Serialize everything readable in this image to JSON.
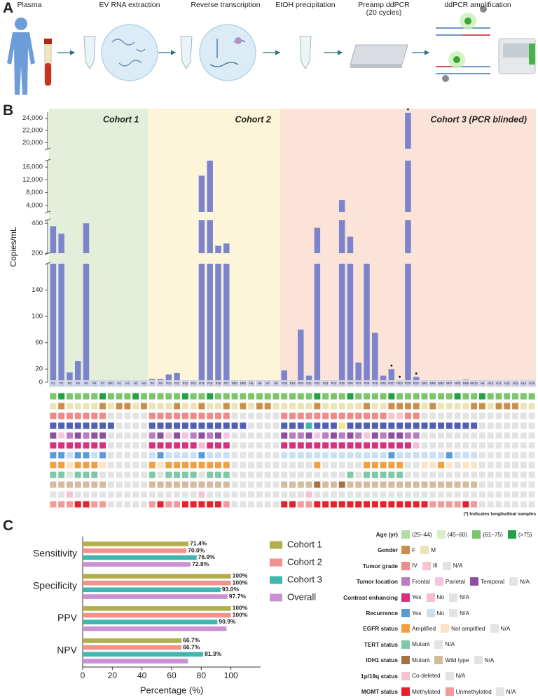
{
  "panels": [
    "A",
    "B",
    "C"
  ],
  "workflow": {
    "steps": [
      "Plasma",
      "EV RNA extraction",
      "Reverse transcription",
      "EtOH precipitation",
      "Preamp ddPCR (20 cycles)",
      "ddPCR amplification"
    ]
  },
  "chart_data": [
    {
      "type": "bar",
      "ylabel": "Copies/mL",
      "color": "#7c84cc",
      "y_segments": [
        {
          "ylim": [
            0,
            180
          ],
          "yticks": [
            0,
            20,
            60,
            100,
            140
          ]
        },
        {
          "ylim": [
            200,
            420
          ],
          "yticks": [
            200,
            400
          ]
        },
        {
          "ylim": [
            2000,
            18000
          ],
          "yticks": [
            {
              "value": 4000,
              "label": "4,000"
            },
            {
              "value": 8000,
              "label": "8,000"
            },
            {
              "value": 12000,
              "label": "12,000"
            },
            {
              "value": 16000,
              "label": "16,000"
            }
          ]
        },
        {
          "ylim": [
            19000,
            25000
          ],
          "yticks": [
            {
              "value": 20000,
              "label": "20,000"
            },
            {
              "value": 22000,
              "label": "22,000"
            },
            {
              "value": 24000,
              "label": "24,000"
            }
          ]
        }
      ],
      "groups": [
        {
          "name": "Cohort 1",
          "color": "#e4efd9",
          "categories": [
            "P1",
            "P2",
            "P3",
            "P4",
            "P5",
            "P6",
            "P7",
            "NR1",
            "H1",
            "H2",
            "H3",
            "H4"
          ],
          "values": [
            380,
            330,
            15,
            32,
            400,
            0,
            0,
            0,
            0,
            0,
            0,
            0
          ]
        },
        {
          "name": "Cohort 2",
          "color": "#fcf5d9",
          "categories": [
            "P8",
            "P9",
            "P10",
            "P11",
            "P12",
            "P13",
            "P14",
            "P15",
            "P16",
            "P17",
            "NR2",
            "NR3",
            "H5",
            "H6",
            "H7",
            "H8"
          ],
          "values": [
            5,
            5,
            12,
            14,
            0,
            0,
            13300,
            18000,
            250,
            265,
            0,
            0,
            0,
            0,
            0,
            0
          ]
        },
        {
          "name": "Cohort 3 (PCR blinded)",
          "color": "#fbe3d8",
          "categories": [
            "P18",
            "P19",
            "P20",
            "P21",
            "P22",
            "P23",
            "P24",
            "P25",
            "P26",
            "P27",
            "P28",
            "P29",
            "P30",
            "P31*",
            "P32*",
            "P33*",
            "P34*",
            "NR4",
            "NR5",
            "NR6",
            "NR7",
            "NR8",
            "NR9",
            "NR10",
            "H9",
            "H10",
            "H11",
            "H12",
            "H13",
            "H14",
            "H15"
          ],
          "values": [
            18,
            0,
            80,
            10,
            370,
            0,
            0,
            5700,
            310,
            30,
            180,
            75,
            10,
            20,
            3,
            24900,
            8,
            0,
            0,
            0,
            0,
            0,
            4,
            0,
            0,
            0,
            0,
            0,
            0,
            0,
            0
          ]
        }
      ],
      "note": "(*) Indicates longitudinal samples",
      "heatmap": [
        {
          "name": "Age (yr)",
          "categories": [
            "(25–44)",
            "(45–60)",
            "(61–75)",
            "(>75)"
          ],
          "colors": [
            "#b5dca5",
            "#d9edc9",
            "#7dc56b",
            "#24a148"
          ],
          "values": [
            2,
            3,
            2,
            2,
            2,
            2,
            3,
            2,
            2,
            2,
            3,
            2,
            2,
            2,
            2,
            2,
            3,
            2,
            2,
            3,
            2,
            2,
            2,
            2,
            2,
            2,
            2,
            2,
            2,
            2,
            2,
            2,
            3,
            2,
            2,
            2,
            3,
            2,
            2,
            2,
            2,
            3,
            2,
            2,
            2,
            2,
            2,
            2,
            2,
            3,
            2,
            2,
            3,
            2,
            2,
            2,
            2,
            2,
            2
          ]
        },
        {
          "name": "Gender",
          "categories": [
            "F",
            "M"
          ],
          "colors": [
            "#c98f4a",
            "#ece3b8"
          ],
          "values": [
            1,
            0,
            1,
            1,
            1,
            1,
            0,
            1,
            0,
            0,
            1,
            0,
            1,
            1,
            1,
            0,
            1,
            1,
            0,
            1,
            1,
            0,
            1,
            0,
            1,
            0,
            0,
            1,
            1,
            1,
            1,
            1,
            0,
            1,
            1,
            1,
            1,
            1,
            0,
            1,
            1,
            0,
            0,
            0,
            0,
            1,
            0,
            1,
            1,
            1,
            1,
            0,
            0,
            1,
            0,
            0,
            0,
            1,
            1
          ]
        },
        {
          "name": "Tumor grade",
          "categories": [
            "IV",
            "III",
            "N/A"
          ],
          "colors": [
            "#f08a8a",
            "#f7c5cc",
            "#e3e3e3"
          ],
          "values": [
            0,
            0,
            0,
            0,
            0,
            0,
            0,
            2,
            2,
            2,
            2,
            2,
            0,
            0,
            0,
            0,
            0,
            0,
            0,
            0,
            0,
            0,
            2,
            2,
            2,
            2,
            2,
            2,
            0,
            0,
            0,
            0,
            0,
            0,
            0,
            0,
            0,
            0,
            0,
            0,
            0,
            1,
            1,
            0,
            0,
            2,
            2,
            2,
            2,
            2,
            2,
            2,
            2,
            2,
            2,
            2,
            2,
            2,
            2
          ]
        },
        {
          "colors": [
            "#4f5fb3",
            "#3bb5b0",
            "#efe58a",
            "#e3e3e3"
          ],
          "values": [
            0,
            0,
            0,
            0,
            0,
            0,
            0,
            0,
            3,
            3,
            3,
            3,
            0,
            0,
            0,
            0,
            0,
            0,
            0,
            0,
            0,
            0,
            0,
            0,
            3,
            3,
            3,
            3,
            0,
            0,
            0,
            1,
            0,
            0,
            0,
            2,
            0,
            0,
            0,
            0,
            0,
            0,
            0,
            0,
            0,
            0,
            0,
            0,
            0,
            0,
            0,
            0,
            3,
            3,
            3,
            3,
            3,
            3,
            3
          ]
        },
        {
          "name": "Tumor location",
          "categories": [
            "Frontal",
            "Parietal",
            "Temporal",
            "N/A"
          ],
          "colors": [
            "#b87cc0",
            "#f4c6dd",
            "#8e4fa0",
            "#e3e3e3"
          ],
          "values": [
            2,
            1,
            0,
            2,
            0,
            2,
            2,
            3,
            3,
            3,
            3,
            3,
            0,
            2,
            1,
            2,
            1,
            0,
            2,
            0,
            2,
            1,
            3,
            3,
            3,
            3,
            3,
            3,
            2,
            0,
            0,
            2,
            1,
            0,
            2,
            0,
            2,
            0,
            1,
            2,
            0,
            2,
            2,
            0,
            0,
            3,
            3,
            3,
            3,
            3,
            3,
            3,
            3,
            3,
            3,
            3,
            3,
            3,
            3
          ]
        },
        {
          "name": "Contrast enhancing",
          "categories": [
            "Yes",
            "No",
            "N/A"
          ],
          "colors": [
            "#d6317f",
            "#f6bcd6",
            "#e3e3e3"
          ],
          "values": [
            0,
            0,
            0,
            0,
            0,
            0,
            0,
            2,
            2,
            2,
            2,
            2,
            0,
            0,
            0,
            0,
            0,
            0,
            1,
            0,
            0,
            0,
            2,
            2,
            2,
            2,
            2,
            2,
            0,
            0,
            0,
            0,
            0,
            0,
            0,
            0,
            0,
            0,
            0,
            0,
            0,
            0,
            0,
            0,
            1,
            2,
            2,
            2,
            2,
            2,
            2,
            2,
            2,
            2,
            2,
            2,
            2,
            2,
            2
          ]
        },
        {
          "name": "Recurrence",
          "categories": [
            "Yes",
            "No",
            "N/A"
          ],
          "colors": [
            "#5b9bd5",
            "#c9dff3",
            "#e3e3e3"
          ],
          "values": [
            0,
            0,
            1,
            0,
            0,
            1,
            0,
            2,
            2,
            2,
            2,
            2,
            1,
            0,
            1,
            1,
            1,
            1,
            0,
            1,
            1,
            1,
            2,
            2,
            2,
            2,
            2,
            2,
            1,
            1,
            1,
            1,
            1,
            1,
            1,
            1,
            1,
            1,
            1,
            1,
            1,
            0,
            1,
            1,
            1,
            1,
            1,
            1,
            0,
            1,
            1,
            1,
            2,
            2,
            2,
            2,
            2,
            2,
            2
          ]
        },
        {
          "name": "EGFR status",
          "categories": [
            "Amplified",
            "Not amplified",
            "N/A"
          ],
          "colors": [
            "#f2a03f",
            "#fde3c4",
            "#e3e3e3"
          ],
          "values": [
            0,
            0,
            1,
            0,
            0,
            0,
            1,
            2,
            2,
            2,
            2,
            2,
            0,
            1,
            0,
            0,
            0,
            0,
            0,
            0,
            0,
            0,
            2,
            2,
            2,
            2,
            2,
            2,
            2,
            2,
            2,
            2,
            0,
            2,
            2,
            2,
            2,
            2,
            0,
            0,
            0,
            0,
            0,
            2,
            2,
            1,
            1,
            0,
            1,
            2,
            1,
            1,
            2,
            2,
            2,
            2,
            2,
            2,
            2
          ]
        },
        {
          "name": "TERT status",
          "categories": [
            "Mutant",
            "N/A"
          ],
          "colors": [
            "#7ec8a8",
            "#e3e3e3"
          ],
          "values": [
            0,
            0,
            1,
            0,
            0,
            0,
            1,
            1,
            1,
            1,
            1,
            1,
            0,
            1,
            0,
            0,
            0,
            0,
            1,
            0,
            0,
            0,
            1,
            1,
            1,
            1,
            1,
            1,
            1,
            1,
            1,
            1,
            1,
            1,
            1,
            1,
            0,
            1,
            0,
            0,
            0,
            0,
            0,
            1,
            1,
            1,
            1,
            1,
            1,
            1,
            1,
            1,
            1,
            1,
            1,
            1,
            1,
            1,
            1
          ]
        },
        {
          "name": "IDH1 status",
          "categories": [
            "Mutant",
            "Wild type",
            "N/A"
          ],
          "colors": [
            "#a47240",
            "#d3bb9c",
            "#e3e3e3"
          ],
          "values": [
            1,
            1,
            1,
            1,
            1,
            1,
            1,
            2,
            2,
            2,
            2,
            2,
            1,
            1,
            1,
            1,
            1,
            1,
            1,
            1,
            1,
            1,
            2,
            2,
            2,
            2,
            2,
            2,
            1,
            1,
            1,
            1,
            0,
            1,
            1,
            0,
            1,
            1,
            1,
            1,
            1,
            1,
            1,
            1,
            1,
            1,
            1,
            1,
            1,
            1,
            1,
            1,
            2,
            2,
            2,
            2,
            2,
            2,
            2
          ]
        },
        {
          "name": "1p/19q status",
          "categories": [
            "Co-deleted",
            "N/A"
          ],
          "colors": [
            "#f6c2d0",
            "#e3e3e3"
          ],
          "values": [
            1,
            1,
            0,
            1,
            1,
            1,
            1,
            1,
            1,
            1,
            1,
            1,
            1,
            1,
            1,
            1,
            1,
            1,
            0,
            1,
            1,
            1,
            1,
            1,
            1,
            1,
            1,
            1,
            1,
            1,
            1,
            0,
            1,
            1,
            1,
            1,
            1,
            1,
            1,
            1,
            1,
            1,
            1,
            1,
            1,
            1,
            1,
            1,
            1,
            1,
            1,
            1,
            1,
            1,
            1,
            1,
            1,
            1,
            1
          ]
        },
        {
          "name": "MGMT status",
          "categories": [
            "Methylated",
            "Unmethylated",
            "N/A"
          ],
          "colors": [
            "#e8202a",
            "#f59a9a",
            "#e3e3e3"
          ],
          "values": [
            1,
            1,
            1,
            0,
            0,
            1,
            1,
            2,
            2,
            2,
            2,
            2,
            1,
            0,
            1,
            1,
            0,
            0,
            0,
            0,
            0,
            1,
            2,
            2,
            2,
            2,
            2,
            2,
            0,
            0,
            1,
            1,
            0,
            0,
            0,
            0,
            0,
            0,
            0,
            0,
            0,
            0,
            0,
            0,
            0,
            0,
            1,
            1,
            1,
            1,
            0,
            1,
            2,
            2,
            2,
            2,
            2,
            2,
            2
          ]
        }
      ]
    },
    {
      "type": "bar",
      "orientation": "horizontal",
      "categories": [
        "Sensitivity",
        "Specificity",
        "PPV",
        "NPV"
      ],
      "xlabel": "Percentage (%)",
      "xlim": [
        0,
        120
      ],
      "xticks": [
        0,
        20,
        40,
        60,
        80,
        100
      ],
      "legend": "right",
      "series": [
        {
          "name": "Cohort 1",
          "color": "#b3ae4c",
          "values": [
            71.4,
            100,
            100,
            66.7
          ],
          "value_labels": [
            "71.4%",
            "100%",
            "100%",
            "66.7%"
          ]
        },
        {
          "name": "Cohort 2",
          "color": "#f3928c",
          "values": [
            70.0,
            100,
            100,
            66.7
          ],
          "value_labels": [
            "70.0%",
            "100%",
            "100%",
            "66.7%"
          ]
        },
        {
          "name": "Cohort 3",
          "color": "#40b7ae",
          "values": [
            76.9,
            93.0,
            90.9,
            81.3
          ],
          "value_labels": [
            "76.9%",
            "93.0%",
            "90.9%",
            "81.3%"
          ]
        },
        {
          "name": "Overall",
          "color": "#c990d3",
          "values": [
            72.8,
            97.7,
            97,
            71
          ],
          "value_labels": [
            "72.8%",
            "97.7%",
            null,
            null
          ]
        }
      ]
    }
  ]
}
